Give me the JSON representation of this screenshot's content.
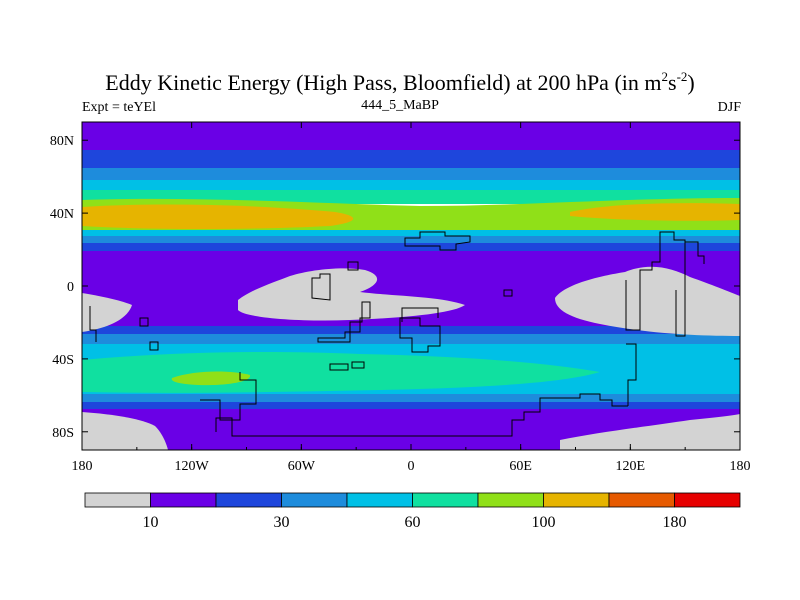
{
  "chart_data": {
    "type": "heatmap",
    "title_main": "Eddy Kinetic Energy (High Pass, Bloomfield) at 200 hPa (in m",
    "title_sup1": "2",
    "title_mid": "s",
    "title_sup2": "-2",
    "title_end": ")",
    "left_label": "Expt = teYEl",
    "center_label": "444_5_MaBP",
    "right_label": "DJF",
    "x_ticks": [
      "180",
      "120W",
      "60W",
      "0",
      "60E",
      "120E",
      "180"
    ],
    "y_ticks": [
      "80N",
      "40N",
      "0",
      "40S",
      "80S"
    ],
    "xlim": [
      -180,
      180
    ],
    "ylim": [
      -90,
      90
    ],
    "colorbar": {
      "colors": [
        "#d3d3d3",
        "#6a00e6",
        "#1e46dc",
        "#1e8cdc",
        "#00c0e6",
        "#10e0a0",
        "#90e018",
        "#e6b400",
        "#e65a00",
        "#e60000"
      ],
      "labels": [
        {
          "text": "10",
          "index": 1
        },
        {
          "text": "30",
          "index": 3
        },
        {
          "text": "60",
          "index": 5
        },
        {
          "text": "100",
          "index": 7
        },
        {
          "text": "180",
          "index": 9
        }
      ]
    }
  }
}
